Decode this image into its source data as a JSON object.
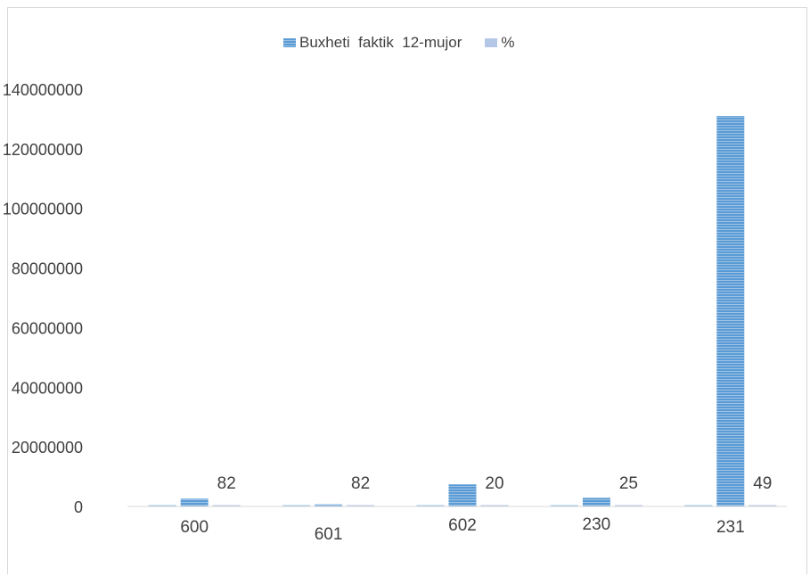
{
  "chart_data": {
    "type": "bar",
    "categories": [
      "600",
      "601",
      "602",
      "230",
      "231"
    ],
    "series": [
      {
        "name": "",
        "values": [
          0,
          0,
          0,
          0,
          0
        ],
        "color": "#9dc3e6"
      },
      {
        "name": "Buxheti  faktik  12-mujor",
        "values": [
          2600000,
          700000,
          7400000,
          2900000,
          131000000
        ],
        "color": "#5b9bd5"
      },
      {
        "name": "%",
        "values": [
          82,
          82,
          20,
          25,
          49
        ],
        "color": "#b4c7e7"
      }
    ],
    "data_labels": [
      "82",
      "82",
      "20",
      "25",
      "49"
    ],
    "y_ticks": [
      "0",
      "20000000",
      "40000000",
      "60000000",
      "80000000",
      "100000000",
      "120000000",
      "140000000"
    ],
    "ylim": [
      0,
      140000000
    ],
    "grid": false,
    "legend_position": "top",
    "title": "",
    "xlabel": "",
    "ylabel": ""
  }
}
